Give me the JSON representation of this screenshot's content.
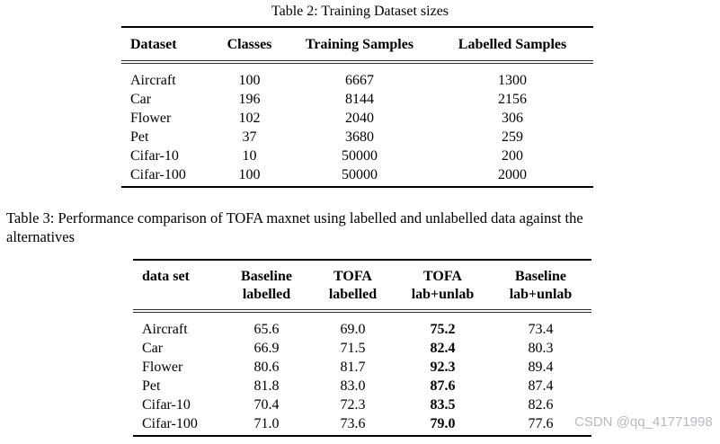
{
  "page": {
    "background_color": "#ffffff",
    "text_color": "#000000",
    "watermark_color": "#b7babd"
  },
  "table2": {
    "caption": "Table 2: Training Dataset sizes",
    "headers": [
      "Dataset",
      "Classes",
      "Training Samples",
      "Labelled Samples"
    ],
    "rows": [
      [
        "Aircraft",
        "100",
        "6667",
        "1300"
      ],
      [
        "Car",
        "196",
        "8144",
        "2156"
      ],
      [
        "Flower",
        "102",
        "2040",
        "306"
      ],
      [
        "Pet",
        "37",
        "3680",
        "259"
      ],
      [
        "Cifar-10",
        "10",
        "50000",
        "200"
      ],
      [
        "Cifar-100",
        "100",
        "50000",
        "2000"
      ]
    ]
  },
  "table3": {
    "caption_line1": "Table 3: Performance comparison of TOFA maxnet using labelled and unlabelled data against the",
    "caption_line2": "alternatives",
    "headers": [
      {
        "line1": "data set",
        "line2": ""
      },
      {
        "line1": "Baseline",
        "line2": "labelled"
      },
      {
        "line1": "TOFA",
        "line2": "labelled"
      },
      {
        "line1": "TOFA",
        "line2": "lab+unlab"
      },
      {
        "line1": "Baseline",
        "line2": "lab+unlab"
      }
    ],
    "bold_column": "TOFA lab+unlab",
    "rows": [
      [
        "Aircraft",
        "65.6",
        "69.0",
        "75.2",
        "73.4"
      ],
      [
        "Car",
        "66.9",
        "71.5",
        "82.4",
        "80.3"
      ],
      [
        "Flower",
        "80.6",
        "81.7",
        "92.3",
        "89.4"
      ],
      [
        "Pet",
        "81.8",
        "83.0",
        "87.6",
        "87.4"
      ],
      [
        "Cifar-10",
        "70.4",
        "72.3",
        "83.5",
        "82.6"
      ],
      [
        "Cifar-100",
        "71.0",
        "73.6",
        "79.0",
        "77.6"
      ]
    ]
  },
  "watermark": {
    "text": "CSDN @qq_41771998"
  }
}
